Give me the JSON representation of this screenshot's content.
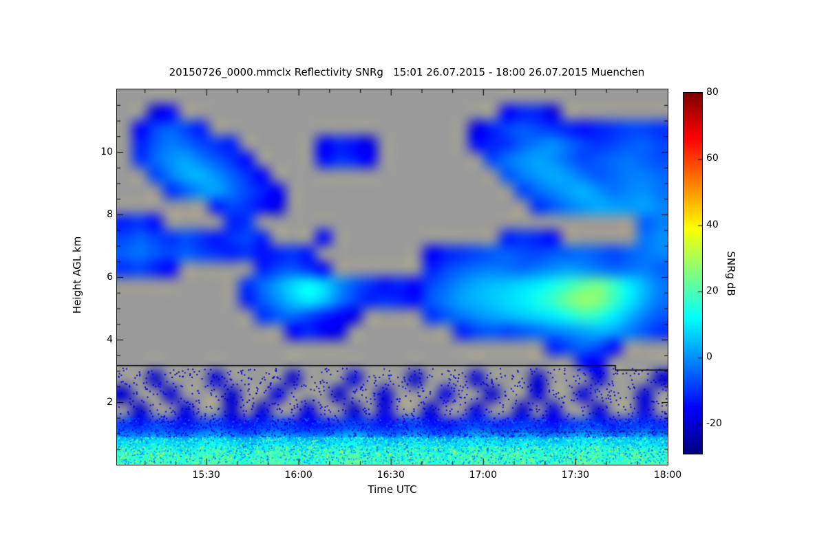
{
  "page": {
    "background": "#ffffff"
  },
  "chart_data": {
    "type": "heatmap",
    "title": "20150726_0000.mmclx Reflectivity SNRg   15:01 26.07.2015 - 18:00 26.07.2015 Muenchen",
    "x": {
      "label": "Time UTC",
      "start_label": "15:01",
      "end_label": "18:00",
      "start_min": 901,
      "end_min": 1080,
      "ticks": [
        {
          "label": "15:30",
          "min": 930
        },
        {
          "label": "16:00",
          "min": 960
        },
        {
          "label": "16:30",
          "min": 990
        },
        {
          "label": "17:00",
          "min": 1020
        },
        {
          "label": "17:30",
          "min": 1050
        },
        {
          "label": "18:00",
          "min": 1080
        }
      ],
      "minor_step_min": 10
    },
    "y": {
      "label": "Height AGL km",
      "min_km": 0,
      "max_km": 12,
      "ticks": [
        2,
        4,
        6,
        8,
        10
      ],
      "minor_step_km": 0.5
    },
    "colorbar": {
      "label": "SNRg dB",
      "min": -29,
      "max": 80,
      "ticks": [
        80,
        60,
        40,
        20,
        0,
        -20
      ],
      "colormap": "jet"
    },
    "no_data_color": "#9a9a9a",
    "grid": {
      "n_cols": 36,
      "n_rows": 24,
      "col_minutes": 5,
      "row_km": 0.5,
      "origin": "bottom-left",
      "units": "SNRg dB, null = no signal (gray)",
      "values": [
        [
          18,
          16,
          20,
          17,
          15,
          19,
          21,
          16,
          14,
          18,
          20,
          17,
          15,
          16,
          19,
          22,
          18,
          15,
          17,
          20,
          16,
          14,
          18,
          21,
          19,
          16,
          20,
          17,
          15,
          18,
          21,
          19,
          16,
          18,
          20,
          17
        ],
        [
          8,
          6,
          10,
          7,
          5,
          9,
          11,
          6,
          4,
          8,
          10,
          7,
          5,
          6,
          9,
          12,
          8,
          5,
          7,
          10,
          6,
          4,
          8,
          11,
          9,
          6,
          10,
          7,
          5,
          8,
          11,
          9,
          6,
          8,
          10,
          7
        ],
        [
          -10,
          -13,
          -9,
          -12,
          -14,
          -10,
          -8,
          -13,
          -15,
          -11,
          -9,
          -12,
          -14,
          -13,
          -10,
          -8,
          -11,
          -14,
          -12,
          -9,
          -13,
          -15,
          -11,
          -8,
          -10,
          -13,
          -9,
          -12,
          -14,
          -11,
          -8,
          -10,
          -13,
          -11,
          -9,
          -12
        ],
        [
          null,
          -20,
          null,
          null,
          -18,
          null,
          null,
          -20,
          null,
          -19,
          null,
          null,
          -18,
          null,
          null,
          -20,
          null,
          -18,
          null,
          null,
          -19,
          null,
          null,
          -18,
          null,
          null,
          -20,
          null,
          -18,
          null,
          null,
          -19,
          null,
          null,
          -18,
          null
        ],
        [
          -20,
          null,
          null,
          -19,
          null,
          null,
          null,
          -20,
          null,
          null,
          -18,
          null,
          null,
          null,
          -20,
          null,
          null,
          -19,
          null,
          null,
          null,
          -18,
          null,
          null,
          -20,
          null,
          null,
          -19,
          null,
          null,
          -18,
          null,
          null,
          null,
          -19,
          null
        ],
        [
          null,
          null,
          -20,
          null,
          null,
          null,
          -19,
          null,
          null,
          null,
          null,
          -20,
          null,
          null,
          null,
          -18,
          null,
          null,
          null,
          -20,
          null,
          null,
          null,
          -19,
          null,
          null,
          null,
          -20,
          null,
          null,
          null,
          -18,
          null,
          null,
          null,
          -20
        ],
        [
          null,
          null,
          null,
          null,
          null,
          null,
          null,
          null,
          null,
          null,
          null,
          null,
          null,
          null,
          null,
          null,
          null,
          null,
          null,
          null,
          null,
          null,
          null,
          null,
          null,
          null,
          null,
          null,
          null,
          null,
          -14,
          -16,
          null,
          null,
          null,
          null
        ],
        [
          null,
          null,
          null,
          null,
          null,
          null,
          null,
          null,
          null,
          null,
          null,
          null,
          null,
          null,
          null,
          null,
          null,
          null,
          null,
          null,
          null,
          null,
          null,
          null,
          null,
          null,
          null,
          null,
          -12,
          -8,
          -5,
          -8,
          -14,
          null,
          null,
          null
        ],
        [
          null,
          null,
          null,
          null,
          null,
          null,
          null,
          null,
          null,
          null,
          null,
          -15,
          -12,
          -16,
          -18,
          null,
          null,
          null,
          null,
          null,
          null,
          null,
          -12,
          -8,
          -6,
          -8,
          -6,
          -4,
          -2,
          0,
          2,
          4,
          2,
          -2,
          -6,
          -10
        ],
        [
          null,
          null,
          null,
          null,
          null,
          null,
          null,
          null,
          null,
          -10,
          -6,
          -4,
          -8,
          -12,
          -15,
          -18,
          null,
          null,
          null,
          null,
          -10,
          -6,
          -3,
          0,
          2,
          4,
          6,
          8,
          10,
          14,
          18,
          16,
          10,
          4,
          -2,
          -6
        ],
        [
          null,
          null,
          null,
          null,
          null,
          null,
          null,
          null,
          -12,
          -6,
          0,
          6,
          10,
          6,
          -2,
          -8,
          -12,
          -10,
          -12,
          -14,
          -6,
          -2,
          2,
          4,
          6,
          8,
          10,
          14,
          18,
          24,
          28,
          26,
          18,
          10,
          3,
          -3
        ],
        [
          null,
          null,
          null,
          null,
          null,
          null,
          null,
          null,
          -10,
          -4,
          2,
          8,
          12,
          8,
          0,
          -6,
          -10,
          -14,
          -12,
          -15,
          -8,
          -4,
          0,
          3,
          5,
          6,
          8,
          10,
          14,
          18,
          22,
          24,
          18,
          10,
          4,
          -2
        ],
        [
          -10,
          -8,
          -12,
          -15,
          null,
          null,
          null,
          null,
          null,
          -12,
          -8,
          -6,
          -10,
          -14,
          null,
          null,
          null,
          null,
          null,
          null,
          -12,
          -8,
          -5,
          -3,
          -2,
          -3,
          -4,
          -2,
          0,
          2,
          0,
          -2,
          -4,
          -3,
          -2,
          -5
        ],
        [
          -5,
          -3,
          -6,
          -8,
          -5,
          -8,
          -10,
          -12,
          -10,
          -14,
          -12,
          -10,
          -13,
          null,
          null,
          null,
          null,
          null,
          null,
          null,
          -16,
          -12,
          -10,
          -8,
          -6,
          -5,
          -7,
          -8,
          -6,
          -5,
          -4,
          -6,
          -8,
          -5,
          -3,
          -1
        ],
        [
          -8,
          -5,
          -8,
          -10,
          -7,
          -10,
          -13,
          -10,
          -8,
          -12,
          null,
          null,
          null,
          -15,
          null,
          null,
          null,
          null,
          null,
          null,
          null,
          null,
          null,
          null,
          null,
          -12,
          -10,
          -12,
          -14,
          null,
          null,
          null,
          null,
          null,
          -3,
          0
        ],
        [
          -12,
          -10,
          -14,
          null,
          null,
          null,
          null,
          -12,
          -10,
          null,
          null,
          null,
          null,
          null,
          null,
          null,
          null,
          null,
          null,
          null,
          null,
          null,
          null,
          null,
          null,
          null,
          null,
          null,
          null,
          null,
          null,
          null,
          null,
          null,
          -5,
          -2
        ],
        [
          null,
          null,
          null,
          null,
          null,
          null,
          -12,
          -8,
          -10,
          -14,
          -18,
          null,
          null,
          null,
          null,
          null,
          null,
          null,
          null,
          null,
          null,
          null,
          null,
          null,
          null,
          null,
          null,
          -10,
          -6,
          -2,
          1,
          3,
          2,
          1,
          2,
          -1
        ],
        [
          null,
          null,
          null,
          -10,
          -5,
          0,
          2,
          -3,
          -8,
          -12,
          -16,
          null,
          null,
          null,
          null,
          null,
          null,
          null,
          null,
          null,
          null,
          null,
          null,
          null,
          null,
          null,
          -8,
          -4,
          -1,
          2,
          4,
          0,
          -3,
          -1,
          0,
          -3
        ],
        [
          null,
          null,
          -8,
          -2,
          3,
          4,
          0,
          -5,
          -10,
          -15,
          null,
          null,
          null,
          null,
          null,
          null,
          null,
          null,
          null,
          null,
          null,
          null,
          null,
          null,
          null,
          -6,
          -2,
          1,
          3,
          1,
          -3,
          -6,
          -4,
          -2,
          -2,
          -4
        ],
        [
          null,
          -10,
          -4,
          0,
          2,
          -2,
          -6,
          -10,
          -14,
          null,
          null,
          null,
          null,
          -14,
          -10,
          -12,
          -16,
          null,
          null,
          null,
          null,
          null,
          null,
          null,
          -8,
          -3,
          0,
          2,
          0,
          -4,
          -8,
          -6,
          -4,
          -3,
          -5,
          -7
        ],
        [
          null,
          -12,
          -6,
          -2,
          -4,
          -8,
          -10,
          -12,
          null,
          null,
          null,
          null,
          null,
          -16,
          -12,
          -14,
          -18,
          null,
          null,
          null,
          null,
          null,
          null,
          -14,
          -12,
          -10,
          -5,
          -2,
          0,
          -4,
          -8,
          -10,
          -8,
          -6,
          -5,
          -8
        ],
        [
          null,
          -15,
          -8,
          -5,
          -8,
          -12,
          null,
          null,
          null,
          null,
          null,
          null,
          null,
          null,
          null,
          null,
          null,
          null,
          null,
          null,
          null,
          null,
          null,
          -18,
          -12,
          -8,
          -6,
          -8,
          -10,
          -12,
          -14,
          -12,
          -10,
          -8,
          -8,
          -10
        ],
        [
          null,
          null,
          -18,
          -15,
          null,
          null,
          null,
          null,
          null,
          null,
          null,
          null,
          null,
          null,
          null,
          null,
          null,
          null,
          null,
          null,
          null,
          null,
          null,
          null,
          null,
          -15,
          -12,
          -12,
          -18,
          null,
          null,
          null,
          null,
          null,
          null,
          null
        ],
        [
          null,
          null,
          null,
          null,
          null,
          null,
          null,
          null,
          null,
          null,
          null,
          null,
          null,
          null,
          null,
          null,
          null,
          null,
          null,
          null,
          null,
          null,
          null,
          null,
          null,
          null,
          null,
          null,
          null,
          null,
          null,
          null,
          null,
          null,
          null,
          null
        ]
      ]
    },
    "annotations": [
      {
        "type": "polyline",
        "name": "range-gate-step-line",
        "color": "#000000",
        "width": 1.5,
        "points_time_height": [
          [
            901,
            3.17
          ],
          [
            1063,
            3.17
          ],
          [
            1063,
            3.03
          ],
          [
            1080,
            3.03
          ]
        ]
      },
      {
        "type": "polyline",
        "name": "dashed-layer-line",
        "color": "#222222",
        "width": 1,
        "dash": [
          3,
          3
        ],
        "points_time_height": [
          [
            1017,
            1.05
          ],
          [
            1080,
            1.05
          ]
        ]
      }
    ],
    "noise": {
      "seed": 42,
      "bands": [
        {
          "h": [
            1.5,
            3.1
          ],
          "count": 900,
          "v": [
            -24,
            -14
          ],
          "size": 2
        },
        {
          "h": [
            0.9,
            1.5
          ],
          "count": 1800,
          "v": [
            -20,
            -2
          ],
          "size": 2
        },
        {
          "h": [
            0.05,
            0.9
          ],
          "count": 4500,
          "v": [
            -5,
            25
          ],
          "size": 2
        },
        {
          "h": [
            0.05,
            0.6
          ],
          "count": 1200,
          "v": [
            15,
            32
          ],
          "size": 2
        }
      ]
    }
  }
}
